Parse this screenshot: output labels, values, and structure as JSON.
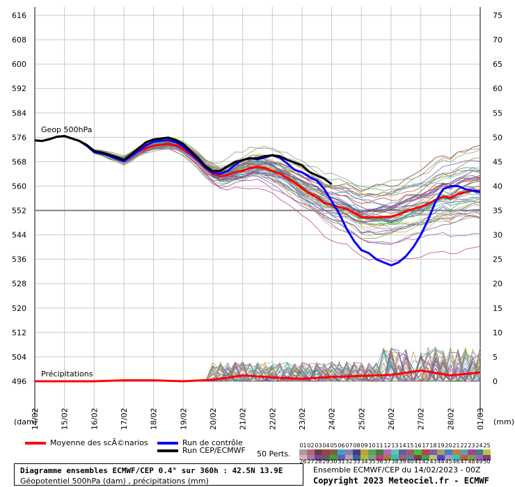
{
  "chart_data": {
    "type": "line",
    "y_left_label": "(dam)",
    "y_right_label": "(mm)",
    "y_left_ticks": [
      "616",
      "608",
      "600",
      "592",
      "584",
      "576",
      "568",
      "560",
      "552",
      "544",
      "536",
      "528",
      "520",
      "512",
      "504",
      "496"
    ],
    "y_right_ticks": [
      "75",
      "70",
      "65",
      "60",
      "55",
      "50",
      "45",
      "40",
      "35",
      "30",
      "25",
      "20",
      "15",
      "10",
      "5",
      "0"
    ],
    "ylim_left": [
      496,
      616
    ],
    "ylim_right": [
      0,
      75
    ],
    "x_tick_labels": [
      "14/02",
      "15/02",
      "16/02",
      "17/02",
      "18/02",
      "19/02",
      "20/02",
      "21/02",
      "22/02",
      "23/02",
      "24/02",
      "25/02",
      "26/02",
      "27/02",
      "28/02",
      "01/03"
    ],
    "x_hours": [
      0,
      24,
      48,
      72,
      96,
      120,
      144,
      168,
      192,
      216,
      240,
      264,
      288,
      312,
      336,
      360
    ],
    "reference_line_dam": 552,
    "annotations": {
      "geop": "Geop 500hPa",
      "precip": "Précipitations"
    },
    "series": [
      {
        "name": "Moyenne des scÃ©narios",
        "color": "#ff0000",
        "x": [
          0,
          6,
          12,
          18,
          24,
          30,
          36,
          42,
          48,
          54,
          60,
          66,
          72,
          78,
          84,
          90,
          96,
          102,
          108,
          114,
          120,
          126,
          132,
          138,
          144,
          150,
          156,
          162,
          168,
          174,
          180,
          186,
          192,
          198,
          204,
          210,
          216,
          222,
          228,
          234,
          240,
          246,
          252,
          258,
          264,
          270,
          276,
          282,
          288,
          294,
          300,
          306,
          312,
          318,
          324,
          330,
          336,
          342,
          348,
          354,
          360
        ],
        "values": [
          575,
          574.8,
          575.4,
          576.2,
          576.4,
          575.6,
          574.8,
          573.4,
          571.4,
          570.9,
          570,
          569.2,
          568.4,
          569.9,
          571.4,
          572.4,
          573.2,
          573.6,
          573.9,
          573.3,
          572.2,
          570.4,
          568.3,
          565.8,
          564,
          563.2,
          563.6,
          564.6,
          565,
          565.9,
          566.3,
          565.9,
          565,
          564.1,
          562.7,
          561.1,
          559.2,
          557.6,
          556.3,
          554.5,
          553.8,
          553.1,
          552.5,
          551.2,
          549.8,
          549.7,
          549.8,
          549.9,
          550,
          550.7,
          551.8,
          552.5,
          553.2,
          554.1,
          555.5,
          556.5,
          556.1,
          557.4,
          558,
          558.5,
          558.3
        ]
      },
      {
        "name": "Run de contrôle",
        "color": "#0000ff",
        "x": [
          0,
          6,
          12,
          18,
          24,
          30,
          36,
          42,
          48,
          54,
          60,
          66,
          72,
          78,
          84,
          90,
          96,
          102,
          108,
          114,
          120,
          126,
          132,
          138,
          144,
          150,
          156,
          162,
          168,
          174,
          180,
          186,
          192,
          198,
          204,
          210,
          216,
          222,
          228,
          234,
          240,
          246,
          252,
          258,
          264,
          270,
          276,
          282,
          288,
          294,
          300,
          306,
          312,
          318,
          324,
          330,
          336,
          342,
          348,
          354,
          360
        ],
        "values": [
          575,
          574.8,
          575.4,
          576.2,
          576.4,
          575.6,
          574.8,
          573.2,
          571.1,
          570.7,
          570,
          569,
          568.2,
          569.9,
          571.6,
          573.4,
          574.6,
          574.9,
          575.1,
          574.4,
          573,
          570.8,
          568.6,
          566.1,
          564.4,
          564,
          565,
          567,
          568.6,
          569.2,
          568.8,
          569.4,
          570.2,
          569.3,
          567.4,
          565.3,
          564.5,
          563,
          561.8,
          559,
          555,
          551,
          546,
          542,
          539,
          538,
          536,
          535,
          534,
          535,
          537,
          540,
          544,
          549,
          555,
          559,
          560,
          560,
          559,
          558.5,
          558
        ]
      },
      {
        "name": "Run CEP/ECMWF",
        "color": "#000000",
        "x": [
          0,
          6,
          12,
          18,
          24,
          30,
          36,
          42,
          48,
          54,
          60,
          66,
          72,
          78,
          84,
          90,
          96,
          102,
          108,
          114,
          120,
          126,
          132,
          138,
          144,
          150,
          156,
          162,
          168,
          174,
          180,
          186,
          192,
          198,
          204,
          210,
          216,
          222,
          228,
          234,
          240
        ],
        "values": [
          575,
          574.8,
          575.4,
          576.2,
          576.4,
          575.6,
          574.8,
          573.5,
          571.5,
          571,
          570.3,
          569.5,
          568.6,
          570.4,
          572.4,
          574.4,
          575.3,
          575.6,
          575.9,
          575.1,
          573.8,
          571.5,
          569.2,
          566.5,
          564.9,
          565,
          566.5,
          567.9,
          568.5,
          569.1,
          569.1,
          569.8,
          570.1,
          569.8,
          568.6,
          567.7,
          566.8,
          564.6,
          563.5,
          562.4,
          560.6
        ]
      }
    ],
    "precip_mean": {
      "x": [
        0,
        24,
        48,
        72,
        96,
        120,
        144,
        168,
        192,
        216,
        240,
        264,
        288,
        312,
        336,
        360
      ],
      "values": [
        0,
        0,
        0,
        0.2,
        0.2,
        0,
        0.3,
        1.2,
        0.8,
        0.5,
        0.9,
        1.1,
        1.3,
        2.2,
        1.2,
        1.8
      ]
    }
  },
  "legend": {
    "mean_label": "Moyenne des scÃ©narios",
    "control_label": "Run de contrôle",
    "cep_label": "Run CEP/ECMWF",
    "perts_label": "50 Perts.",
    "pert_numbers_top": [
      "01",
      "02",
      "03",
      "04",
      "05",
      "06",
      "07",
      "08",
      "09",
      "10",
      "11",
      "12",
      "13",
      "14",
      "15",
      "16",
      "17",
      "18",
      "19",
      "20",
      "21",
      "22",
      "23",
      "24",
      "25"
    ],
    "pert_numbers_bottom": [
      "26",
      "27",
      "28",
      "29",
      "30",
      "31",
      "32",
      "33",
      "34",
      "35",
      "36",
      "37",
      "38",
      "39",
      "40",
      "41",
      "42",
      "43",
      "44",
      "45",
      "46",
      "47",
      "48",
      "49",
      "50"
    ],
    "pert_colors_top": [
      "#a0a0a0",
      "#c06080",
      "#604040",
      "#a04040",
      "#806040",
      "#40a0c0",
      "#8080c0",
      "#404080",
      "#c0a040",
      "#60a060",
      "#408040",
      "#c060c0",
      "#60c0c0",
      "#6060a0",
      "#a06060",
      "#40c040",
      "#c04040",
      "#8060a0",
      "#a0a060",
      "#4080c0",
      "#c08040",
      "#60a0a0",
      "#a040a0",
      "#408080",
      "#c0c040"
    ],
    "pert_colors_bottom": [
      "#e0b0b0",
      "#a080a0",
      "#8040a0",
      "#606060",
      "#40a040",
      "#6060c0",
      "#c0a0a0",
      "#4060a0",
      "#a0c040",
      "#80a080",
      "#c04080",
      "#a08040",
      "#40c0a0",
      "#a06080",
      "#6080a0",
      "#804040",
      "#40a060",
      "#c0c080",
      "#6040c0",
      "#a0a0c0",
      "#40c0c0",
      "#c06040",
      "#80a040",
      "#a060c0",
      "#804080"
    ]
  },
  "info": {
    "line1": "Diagramme ensembles ECMWF/CEP 0.4° sur 360h : 42.5N 13.9E",
    "line2": "Géopotentiel 500hPa (dam) , précipitations (mm)",
    "ensemble": "Ensemble ECMWF/CEP du 14/02/2023 - 00Z",
    "copyright": "Copyright 2023 Meteociel.fr - ECMWF"
  }
}
